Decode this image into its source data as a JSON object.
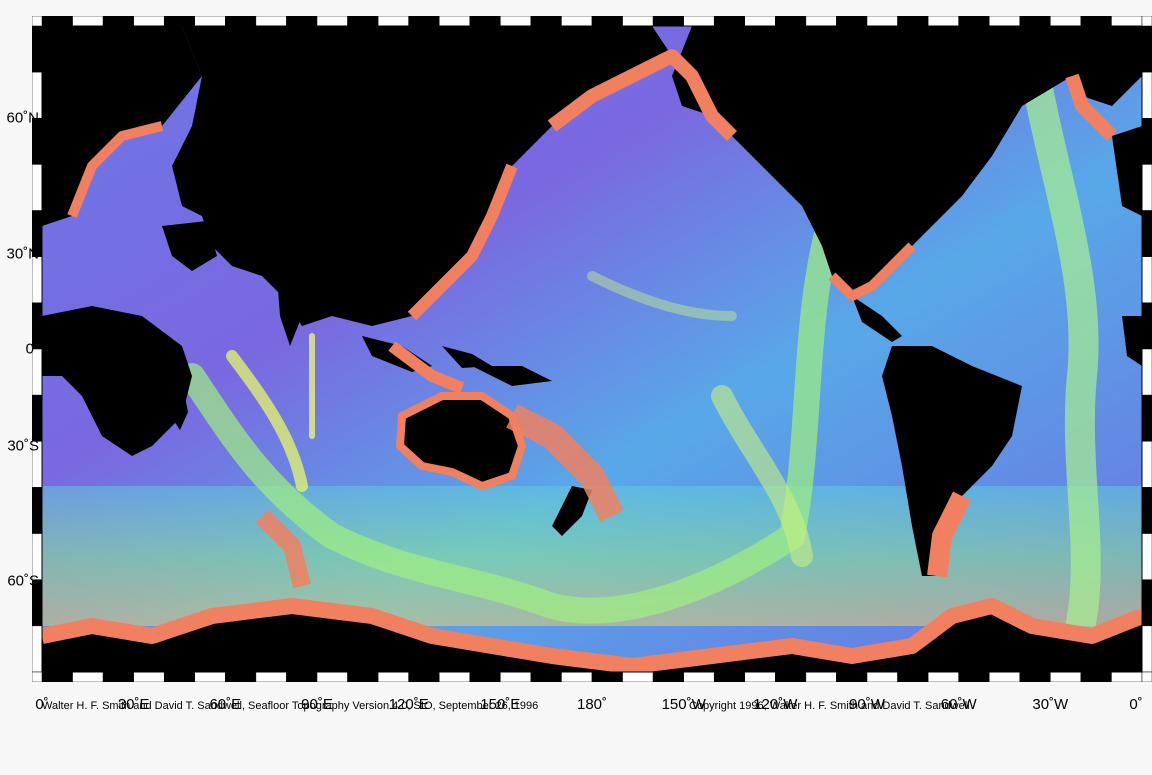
{
  "map": {
    "lon_labels": [
      "0˚",
      "30˚E",
      "60˚E",
      "90˚E",
      "120˚E",
      "150˚E",
      "180˚",
      "150˚W",
      "120˚W",
      "90˚W",
      "60˚W",
      "30˚W",
      "0˚"
    ],
    "lat_labels": [
      "60˚N",
      "30˚N",
      "0˚",
      "30˚S",
      "60˚S"
    ],
    "lat_values": [
      60,
      30,
      0,
      -30,
      -60
    ],
    "lat_range": [
      -72,
      72
    ],
    "lon_range": [
      0,
      360
    ],
    "colors": {
      "land": "#000000",
      "shelf": "#f08060",
      "mid_ocean": "#7ae0a0",
      "deep_ocean": "#7a70e8",
      "ridge": "#d8f060",
      "frame_dark": "#000000",
      "frame_light": "#ffffff"
    }
  },
  "credits": {
    "left": "Walter H. F. Smith and David T. Sandwell, Seafloor Topography Version 4.0, SIO, September 26, 1996",
    "right": "Copyright 1996, Walter H. F. Smith and David T. Sandwell"
  }
}
